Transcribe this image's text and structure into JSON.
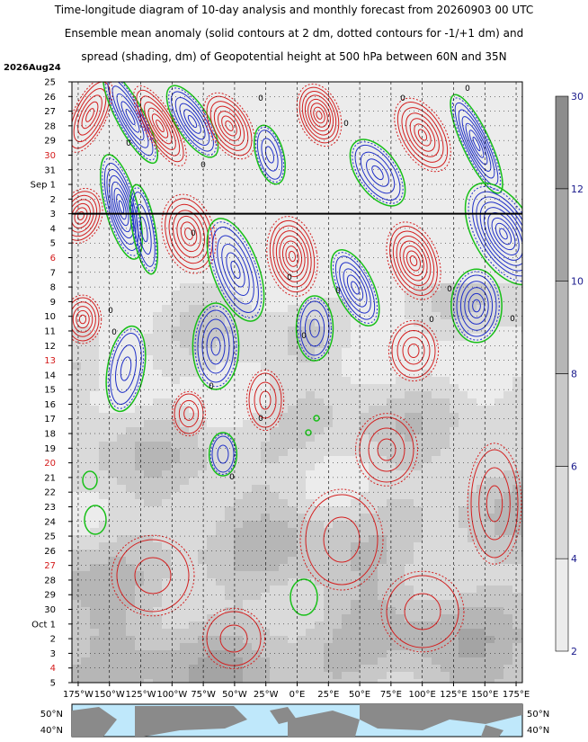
{
  "title": {
    "line1": "Time-longitude diagram of 10-day analysis and monthly forecast from 20260903 00 UTC",
    "line2": "Ensemble mean anomaly (solid contours at 2 dm, dotted contours for -1/+1 dm) and",
    "line3": "spread (shading, dm) of Geopotential height at 500 hPa between 60N and 35N"
  },
  "chart_data": {
    "type": "heatmap",
    "start_label": "2026Aug24",
    "analysis_line_date": "Sep 3",
    "y_ticks": [
      {
        "label": "25",
        "red": false
      },
      {
        "label": "26",
        "red": false
      },
      {
        "label": "27",
        "red": false
      },
      {
        "label": "28",
        "red": false
      },
      {
        "label": "29",
        "red": false
      },
      {
        "label": "30",
        "red": true
      },
      {
        "label": "31",
        "red": false
      },
      {
        "label": "Sep 1",
        "red": false
      },
      {
        "label": "2",
        "red": false
      },
      {
        "label": "3",
        "red": false
      },
      {
        "label": "4",
        "red": false
      },
      {
        "label": "5",
        "red": false
      },
      {
        "label": "6",
        "red": true
      },
      {
        "label": "7",
        "red": false
      },
      {
        "label": "8",
        "red": false
      },
      {
        "label": "9",
        "red": false
      },
      {
        "label": "10",
        "red": false
      },
      {
        "label": "11",
        "red": false
      },
      {
        "label": "12",
        "red": false
      },
      {
        "label": "13",
        "red": true
      },
      {
        "label": "14",
        "red": false
      },
      {
        "label": "15",
        "red": false
      },
      {
        "label": "16",
        "red": false
      },
      {
        "label": "17",
        "red": false
      },
      {
        "label": "18",
        "red": false
      },
      {
        "label": "19",
        "red": false
      },
      {
        "label": "20",
        "red": true
      },
      {
        "label": "21",
        "red": false
      },
      {
        "label": "22",
        "red": false
      },
      {
        "label": "23",
        "red": false
      },
      {
        "label": "24",
        "red": false
      },
      {
        "label": "25",
        "red": false
      },
      {
        "label": "26",
        "red": false
      },
      {
        "label": "27",
        "red": true
      },
      {
        "label": "28",
        "red": false
      },
      {
        "label": "29",
        "red": false
      },
      {
        "label": "30",
        "red": false
      },
      {
        "label": "Oct 1",
        "red": false
      },
      {
        "label": "2",
        "red": false
      },
      {
        "label": "3",
        "red": false
      },
      {
        "label": "4",
        "red": true
      },
      {
        "label": "5",
        "red": false
      }
    ],
    "x_ticks": [
      "175°W",
      "150°W",
      "125°W",
      "100°W",
      "75°W",
      "50°W",
      "25°W",
      "0°E",
      "25°E",
      "50°E",
      "75°E",
      "100°E",
      "125°E",
      "150°E",
      "175°E"
    ],
    "x_range": [
      -180,
      180
    ],
    "colorbar": {
      "levels": [
        2,
        4,
        6,
        8,
        10,
        12,
        30
      ],
      "colors": [
        "#ececec",
        "#dadada",
        "#c8c8c8",
        "#b6b6b6",
        "#a4a4a4",
        "#8c8c8c"
      ]
    },
    "contour_colors": {
      "positive": "#d42020",
      "negative": "#2030c8",
      "minus_one": "#18c018",
      "zero": "#000000"
    },
    "map_lat_labels": [
      "50°N",
      "40°N"
    ],
    "zero_label": "0"
  }
}
